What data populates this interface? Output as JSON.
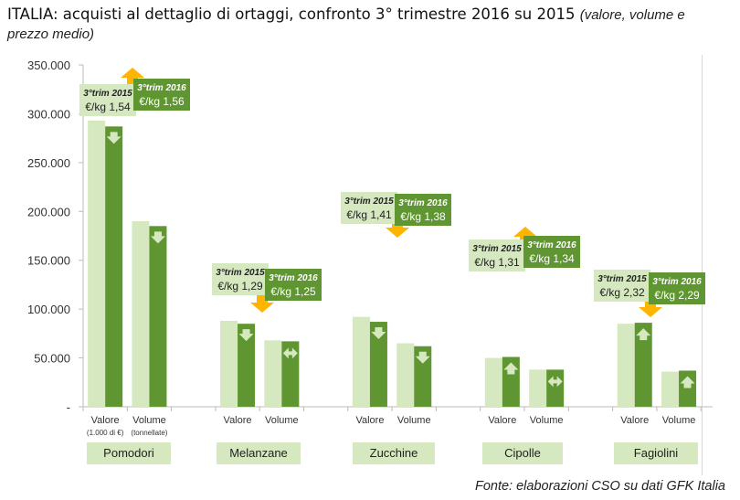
{
  "title": {
    "main": "ITALIA: acquisti al dettaglio di ortaggi, confronto 3° trimestre 2016 su 2015",
    "note": "(valore, volume e prezzo medio)"
  },
  "source": "Fonte: elaborazioni CSO su dati GFK Italia",
  "chart_data": {
    "type": "bar",
    "ylim": [
      0,
      350000
    ],
    "yticks": [
      "-",
      "50.000",
      "100.000",
      "150.000",
      "200.000",
      "250.000",
      "300.000",
      "350.000"
    ],
    "grid": false,
    "colors": {
      "2015": "#d5e8bf",
      "2016": "#5f9632",
      "arrow_price": "#ffb400",
      "arrow_bar": "#d5e8bf"
    },
    "series_labels": [
      "3°trim 2015",
      "3°trim 2016"
    ],
    "groups": [
      {
        "name": "Pomodori",
        "sub_labels": [
          "Valore",
          "Volume"
        ],
        "sub_units": [
          "(1.000 di €)",
          "(tonnellate)"
        ],
        "valore": [
          293000,
          287000
        ],
        "volume": [
          190000,
          185000
        ],
        "price": [
          "€/kg 1,54",
          "€/kg 1,56"
        ],
        "price_trend": "up",
        "valore_trend": "down",
        "volume_trend": "down"
      },
      {
        "name": "Melanzane",
        "sub_labels": [
          "Valore",
          "Volume"
        ],
        "valore": [
          88000,
          85000
        ],
        "volume": [
          68000,
          67000
        ],
        "price": [
          "€/kg 1,29",
          "€/kg  1,25"
        ],
        "price_trend": "down",
        "valore_trend": "down",
        "volume_trend": "flat"
      },
      {
        "name": "Zucchine",
        "sub_labels": [
          "Valore",
          "Volume"
        ],
        "valore": [
          92000,
          87000
        ],
        "volume": [
          65000,
          62000
        ],
        "price": [
          "€/kg 1,41",
          "€/kg 1,38"
        ],
        "price_trend": "down",
        "valore_trend": "down",
        "volume_trend": "down"
      },
      {
        "name": "Cipolle",
        "sub_labels": [
          "Valore",
          "Volume"
        ],
        "valore": [
          50000,
          51000
        ],
        "volume": [
          38000,
          38000
        ],
        "price": [
          "€/kg 1,31",
          "€/kg 1,34"
        ],
        "price_trend": "up",
        "valore_trend": "up",
        "volume_trend": "flat"
      },
      {
        "name": "Fagiolini",
        "sub_labels": [
          "Valore",
          "Volume"
        ],
        "valore": [
          85000,
          86000
        ],
        "volume": [
          36000,
          37000
        ],
        "price": [
          "€/kg 2,32",
          "€/kg  2,29"
        ],
        "price_trend": "down",
        "valore_trend": "up",
        "volume_trend": "up"
      }
    ]
  }
}
